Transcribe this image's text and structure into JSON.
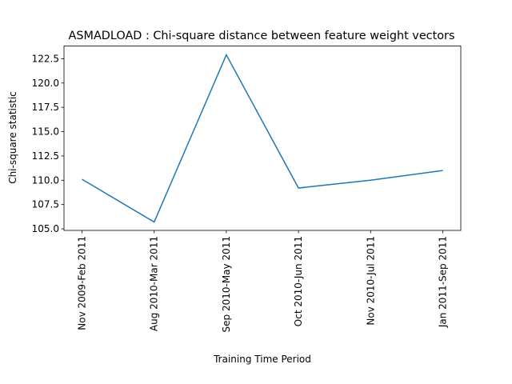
{
  "chart_data": {
    "type": "line",
    "title": "ASMADLOAD : Chi-square distance between feature weight vectors",
    "x_label": "Training Time Period",
    "y_label": "Chi-square statistic",
    "categories": [
      "Nov 2009-Feb 2011",
      "Aug 2010-Mar 2011",
      "Sep 2010-May 2011",
      "Oct 2010-Jun 2011",
      "Nov 2010-Jul 2011",
      "Jan 2011-Sep 2011"
    ],
    "series": [
      {
        "color": "#1f77b4",
        "values": [
          110.1,
          105.7,
          122.9,
          109.2,
          110.0,
          111.0
        ]
      }
    ],
    "ylim": [
      104.84,
      123.81
    ],
    "yticks": [
      {
        "value": 105,
        "label": "105.0"
      },
      107.5,
      {
        "value": 110,
        "label": "110.0"
      },
      112.5,
      {
        "value": 115,
        "label": "115.0"
      },
      117.5,
      {
        "value": 120,
        "label": "120.0"
      },
      122.5
    ],
    "grid": false
  }
}
